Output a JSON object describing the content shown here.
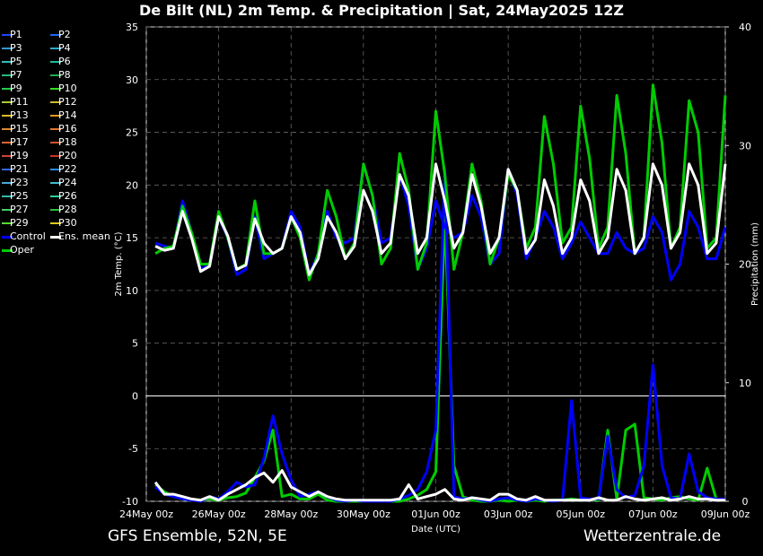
{
  "title": "De Bilt  (NL)  2m Temp. & Precipitation | Sat, 24May2025 12Z",
  "footer": {
    "model": "GFS Ensemble, 52N, 5E",
    "site": "Wetterzentrale.de"
  },
  "colors": {
    "control": "#0000ff",
    "oper": "#00cc00",
    "mean": "#ffffff"
  },
  "legend": [
    {
      "label": "P1",
      "color": "#2244ff"
    },
    {
      "label": "P2",
      "color": "#2266ee"
    },
    {
      "label": "P3",
      "color": "#3399cc"
    },
    {
      "label": "P4",
      "color": "#33aacc"
    },
    {
      "label": "P5",
      "color": "#33bbbb"
    },
    {
      "label": "P6",
      "color": "#22bb99"
    },
    {
      "label": "P7",
      "color": "#22bb77"
    },
    {
      "label": "P8",
      "color": "#22aa55"
    },
    {
      "label": "P9",
      "color": "#22cc44"
    },
    {
      "label": "P10",
      "color": "#33dd22"
    },
    {
      "label": "P11",
      "color": "#aacc33"
    },
    {
      "label": "P12",
      "color": "#ccbb33"
    },
    {
      "label": "P13",
      "color": "#ddbb22"
    },
    {
      "label": "P14",
      "color": "#dd9922"
    },
    {
      "label": "P15",
      "color": "#dd8833"
    },
    {
      "label": "P16",
      "color": "#dd7733"
    },
    {
      "label": "P17",
      "color": "#dd6633"
    },
    {
      "label": "P18",
      "color": "#cc5533"
    },
    {
      "label": "P19",
      "color": "#cc4433"
    },
    {
      "label": "P20",
      "color": "#cc3322"
    },
    {
      "label": "P21",
      "color": "#3366dd"
    },
    {
      "label": "P22",
      "color": "#3388dd"
    },
    {
      "label": "P23",
      "color": "#44aadd"
    },
    {
      "label": "P24",
      "color": "#44bbcc"
    },
    {
      "label": "P25",
      "color": "#33bbaa"
    },
    {
      "label": "P26",
      "color": "#33cc99"
    },
    {
      "label": "P27",
      "color": "#44cc66"
    },
    {
      "label": "P28",
      "color": "#33bb44"
    },
    {
      "label": "P29",
      "color": "#55dd33"
    },
    {
      "label": "P30",
      "color": "#ddcc22"
    },
    {
      "label": "Control",
      "color": "#0000ff"
    },
    {
      "label": "Ens. mean",
      "color": "#ffffff"
    },
    {
      "label": "Oper",
      "color": "#00cc00"
    }
  ],
  "chart_data": {
    "type": "line",
    "title": "De Bilt  (NL)  2m Temp. & Precipitation | Sat, 24May2025 12Z",
    "xlabel": "Date (UTC)",
    "ylabel": "2m Temp. (°C)",
    "y2label": "Precipitation (mm)",
    "xlim_hours": [
      0,
      384
    ],
    "ylim": [
      -10,
      35
    ],
    "y2lim": [
      0,
      40
    ],
    "yticks": [
      "-10",
      "-5",
      "0",
      "5",
      "10",
      "15",
      "20",
      "25",
      "30",
      "35"
    ],
    "y2ticks": [
      "0",
      "10",
      "20",
      "30",
      "40"
    ],
    "xticks": [
      {
        "h": 0,
        "label": "24May 00z"
      },
      {
        "h": 48,
        "label": "26May 00z"
      },
      {
        "h": 96,
        "label": "28May 00z"
      },
      {
        "h": 144,
        "label": "30May 00z"
      },
      {
        "h": 192,
        "label": "01Jun 00z"
      },
      {
        "h": 240,
        "label": "03Jun 00z"
      },
      {
        "h": 288,
        "label": "05Jun 00z"
      },
      {
        "h": 336,
        "label": "07Jun 00z"
      },
      {
        "h": 384,
        "label": "09Jun 00z"
      }
    ],
    "grid": true,
    "zero_line": true,
    "step_hours": 6,
    "start_hour": 6,
    "series": [
      {
        "name": "Ens. mean",
        "color": "#ffffff",
        "values": [
          14.2,
          13.8,
          14.0,
          17.5,
          15.0,
          11.8,
          12.3,
          17.0,
          15.2,
          12.0,
          12.4,
          16.8,
          14.5,
          13.5,
          14.0,
          17.0,
          15.5,
          11.5,
          13.0,
          17.0,
          15.5,
          13.0,
          14.2,
          19.5,
          17.5,
          13.5,
          14.5,
          21.0,
          19.0,
          13.5,
          15.0,
          22.0,
          18.5,
          14.0,
          15.5,
          21.0,
          18.0,
          13.5,
          15.0,
          21.5,
          19.5,
          13.5,
          14.8,
          20.5,
          18.0,
          13.5,
          15.0,
          20.5,
          18.5,
          13.5,
          15.0,
          21.5,
          19.5,
          13.5,
          15.0,
          22.0,
          20.0,
          14.0,
          15.5,
          22.0,
          20.0,
          13.5,
          14.5,
          22.0
        ]
      },
      {
        "name": "Control",
        "color": "#0000ff",
        "values": [
          14.5,
          14.2,
          14.0,
          18.5,
          15.5,
          12.0,
          12.5,
          17.0,
          15.0,
          11.5,
          12.0,
          17.0,
          13.0,
          13.5,
          14.0,
          17.5,
          16.0,
          11.5,
          13.5,
          17.5,
          15.0,
          14.5,
          15.0,
          22.0,
          19.0,
          14.5,
          15.0,
          21.0,
          18.0,
          12.0,
          14.0,
          18.5,
          16.0,
          15.0,
          15.5,
          19.0,
          17.0,
          12.5,
          13.5,
          21.5,
          19.0,
          13.0,
          15.0,
          17.5,
          16.0,
          13.0,
          14.5,
          16.5,
          15.0,
          13.5,
          13.5,
          15.5,
          14.0,
          13.5,
          14.0,
          17.0,
          15.5,
          11.0,
          12.5,
          17.5,
          16.0,
          13.0,
          13.0,
          16.0
        ]
      },
      {
        "name": "Oper",
        "color": "#00cc00",
        "values": [
          13.5,
          14.0,
          14.2,
          18.0,
          15.5,
          12.5,
          12.5,
          17.5,
          15.0,
          12.0,
          12.5,
          18.5,
          13.5,
          13.5,
          14.0,
          17.0,
          15.0,
          11.0,
          13.5,
          19.5,
          17.0,
          13.0,
          14.5,
          22.0,
          19.0,
          12.5,
          14.0,
          23.0,
          19.5,
          12.0,
          14.5,
          27.0,
          21.0,
          12.0,
          15.5,
          22.0,
          18.5,
          12.5,
          15.0,
          21.0,
          19.5,
          14.0,
          16.0,
          26.5,
          22.0,
          14.5,
          16.0,
          27.5,
          22.5,
          14.0,
          16.0,
          28.5,
          23.0,
          13.5,
          15.0,
          29.5,
          24.0,
          14.0,
          16.0,
          28.0,
          25.0,
          14.0,
          15.0,
          28.5
        ]
      }
    ],
    "precip_series": [
      {
        "name": "Ens. mean",
        "color": "#ffffff",
        "values": [
          1.6,
          0.6,
          0.6,
          0.4,
          0.2,
          0.1,
          0.4,
          0.1,
          0.6,
          1.0,
          1.4,
          2.0,
          2.4,
          1.6,
          2.6,
          1.2,
          0.8,
          0.4,
          0.8,
          0.4,
          0.2,
          0.1,
          0.1,
          0.1,
          0.1,
          0.1,
          0.1,
          0.2,
          1.4,
          0.2,
          0.4,
          0.6,
          1.0,
          0.2,
          0.1,
          0.3,
          0.2,
          0.1,
          0.6,
          0.6,
          0.2,
          0.1,
          0.4,
          0.1,
          0.1,
          0.1,
          0.1,
          0.1,
          0.1,
          0.3,
          0.1,
          0.1,
          0.4,
          0.2,
          0.1,
          0.2,
          0.3,
          0.1,
          0.2,
          0.4,
          0.2,
          0.2,
          0.1,
          0.1
        ]
      },
      {
        "name": "Control",
        "color": "#0000ff",
        "values": [
          1.2,
          0.6,
          0.4,
          0.2,
          0.1,
          0.0,
          0.4,
          0.2,
          0.8,
          1.6,
          1.2,
          1.4,
          3.6,
          7.2,
          4.0,
          1.8,
          0.4,
          0.6,
          0.8,
          0.4,
          0.1,
          0.0,
          0.1,
          0.0,
          0.0,
          0.0,
          0.0,
          0.2,
          0.5,
          1.0,
          2.5,
          6.0,
          28.0,
          0.4,
          0.2,
          0.3,
          0.1,
          0.0,
          0.2,
          0.3,
          0.1,
          0.0,
          0.2,
          0.1,
          0.0,
          0.1,
          8.5,
          0.3,
          0.2,
          0.2,
          5.5,
          1.0,
          0.3,
          0.5,
          3.0,
          11.5,
          3.0,
          0.3,
          0.2,
          4.0,
          0.8,
          0.3,
          0.2,
          0.2
        ]
      },
      {
        "name": "Oper",
        "color": "#00cc00",
        "values": [
          1.4,
          0.8,
          0.4,
          0.2,
          0.1,
          0.1,
          0.2,
          0.1,
          0.3,
          0.4,
          0.7,
          2.0,
          3.4,
          6.0,
          0.4,
          0.6,
          0.2,
          0.2,
          0.6,
          0.1,
          0.0,
          0.0,
          0.0,
          0.0,
          0.0,
          0.0,
          0.0,
          0.0,
          0.2,
          0.5,
          1.0,
          2.5,
          24.0,
          3.0,
          0.4,
          0.1,
          0.0,
          0.0,
          0.1,
          0.0,
          0.1,
          0.0,
          0.1,
          0.0,
          0.1,
          0.1,
          0.2,
          0.1,
          0.2,
          0.1,
          6.0,
          0.2,
          6.0,
          6.5,
          0.3,
          0.2,
          0.1,
          0.3,
          0.4,
          0.2,
          0.1,
          2.8,
          0.2,
          0.1
        ]
      }
    ]
  }
}
